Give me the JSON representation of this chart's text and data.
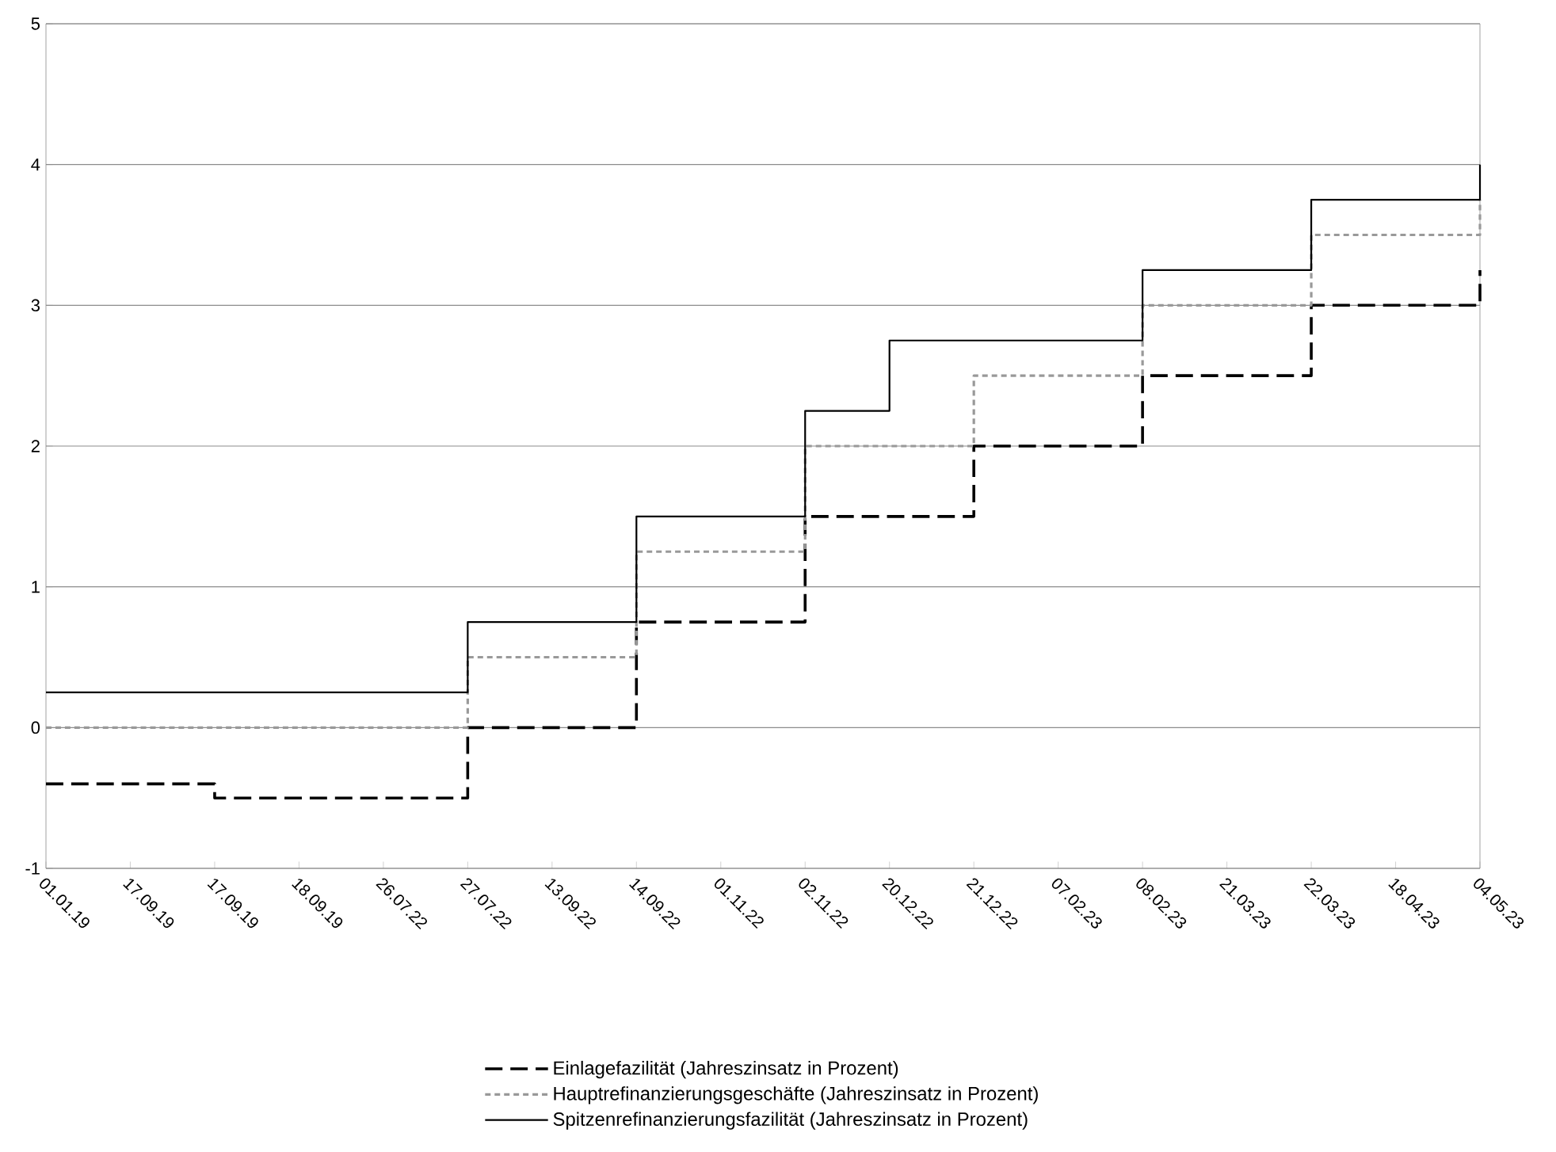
{
  "chart_data": {
    "type": "step",
    "categories": [
      "01.01.19",
      "17.09.19",
      "17.09.19",
      "18.09.19",
      "26.07.22",
      "27.07.22",
      "13.09.22",
      "14.09.22",
      "01.11.22",
      "02.11.22",
      "20.12.22",
      "21.12.22",
      "07.02.23",
      "08.02.23",
      "21.03.23",
      "22.03.23",
      "18.04.23",
      "04.05.23"
    ],
    "ylim": [
      -1,
      5
    ],
    "yticks": [
      -1,
      0,
      1,
      2,
      3,
      4,
      5
    ],
    "grid": "y",
    "legend": "bottom",
    "series": [
      {
        "name": "Einlagefazilität (Jahreszinsatz in Prozent)",
        "color": "#000000",
        "line_style": "dashed",
        "values": [
          -0.4,
          -0.4,
          -0.5,
          -0.5,
          -0.5,
          0,
          0,
          0.75,
          0.75,
          1.5,
          1.5,
          2.0,
          2.0,
          2.5,
          2.5,
          3.0,
          3.0,
          3.25
        ]
      },
      {
        "name": "Hauptrefinanzierungsgeschäfte (Jahreszinsatz in Prozent)",
        "color": "#999999",
        "line_style": "dotted",
        "values": [
          0,
          0,
          0,
          0,
          0,
          0.5,
          0.5,
          1.25,
          1.25,
          2.0,
          2.0,
          2.5,
          2.5,
          3.0,
          3.0,
          3.5,
          3.5,
          3.75
        ]
      },
      {
        "name": "Spitzenrefinanzierungsfazilität (Jahreszinsatz in Prozent)",
        "color": "#000000",
        "line_style": "solid",
        "values": [
          0.25,
          0.25,
          0.25,
          0.25,
          0.25,
          0.75,
          0.75,
          1.5,
          1.5,
          2.25,
          2.75,
          2.75,
          2.75,
          3.25,
          3.25,
          3.75,
          3.75,
          4.0
        ]
      }
    ]
  }
}
